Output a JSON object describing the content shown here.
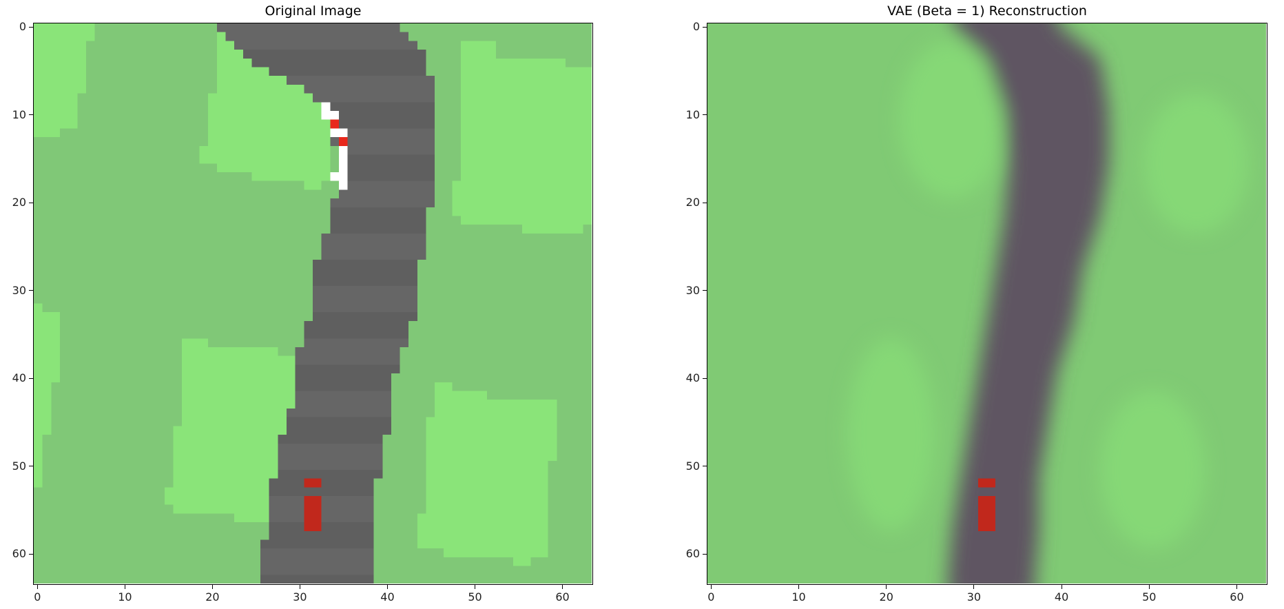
{
  "panels": [
    {
      "title": "Original Image",
      "x_ticks": [
        "0",
        "10",
        "20",
        "30",
        "40",
        "50",
        "60"
      ],
      "y_ticks": [
        "0",
        "10",
        "20",
        "30",
        "40",
        "50",
        "60"
      ]
    },
    {
      "title": "VAE (Beta = 1) Reconstruction",
      "x_ticks": [
        "0",
        "10",
        "20",
        "30",
        "40",
        "50",
        "60"
      ],
      "y_ticks": [
        "0",
        "10",
        "20",
        "30",
        "40",
        "50",
        "60"
      ]
    }
  ],
  "colors": {
    "grass_dark": "#80c877",
    "grass_light": "#8ae479",
    "road": "#666666",
    "road_alt": "#5f5f5f",
    "car": "#c1281c",
    "marker_red": "#e8281c",
    "marker_white": "#ffffff",
    "recon_grass": "#80ca74",
    "recon_road": "#5e5562"
  }
}
